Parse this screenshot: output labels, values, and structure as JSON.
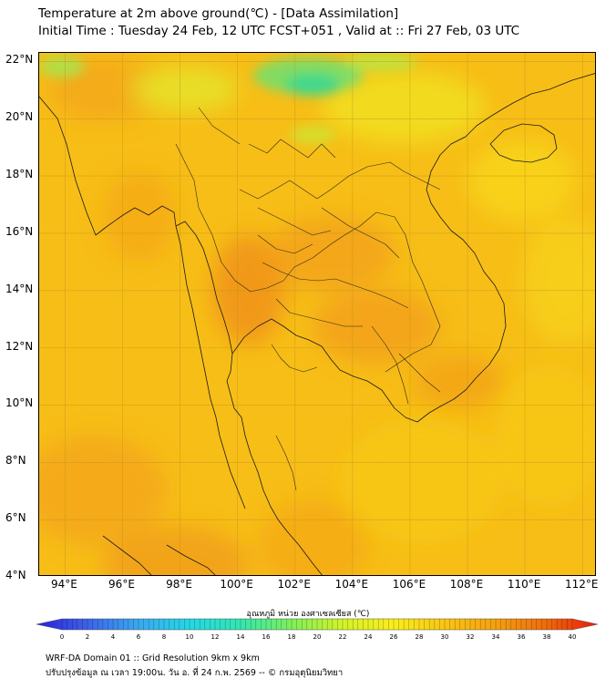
{
  "header": {
    "title_line1": "Temperature at 2m above ground(℃) - [Data Assimilation]",
    "title_line2": "Initial Time : Tuesday 24 Feb, 12 UTC FCST+051 , Valid at :: Fri 27 Feb, 03 UTC"
  },
  "map": {
    "lat_labels": [
      "22°N",
      "20°N",
      "18°N",
      "16°N",
      "14°N",
      "12°N",
      "10°N",
      "8°N",
      "6°N",
      "4°N"
    ],
    "lon_labels": [
      "94°E",
      "96°E",
      "98°E",
      "100°E",
      "102°E",
      "104°E",
      "106°E",
      "108°E",
      "110°E",
      "112°E"
    ],
    "lat_range": [
      4,
      22.3
    ],
    "lon_range": [
      93.1,
      112.5
    ],
    "base_color": "#f7be17",
    "border_color": "#1a1a1a"
  },
  "colorbar": {
    "title": "อุณหภูมิ หน่วย องศาเซลเซียส (℃)",
    "ticks": [
      "0",
      "2",
      "4",
      "6",
      "8",
      "10",
      "12",
      "14",
      "16",
      "18",
      "20",
      "22",
      "24",
      "26",
      "28",
      "30",
      "32",
      "34",
      "36",
      "38",
      "40"
    ],
    "min": 0,
    "max": 40,
    "color_stops": [
      "#2a1fd6",
      "#3d63e8",
      "#3aa8f0",
      "#25d7e6",
      "#33e6b0",
      "#7fef5a",
      "#d3f228",
      "#f9ee1b",
      "#f9c513",
      "#f4a010",
      "#ef6a0c",
      "#e81a0a"
    ]
  },
  "footer": {
    "line1": "WRF-DA Domain 01 :: Grid Resolution 9km x 9km",
    "line2": "ปรับปรุงข้อมูล ณ เวลา 19:00น. วัน อ. ที่ 24 ก.พ. 2569 -- © กรมอุตุนิยมวิทยา"
  }
}
